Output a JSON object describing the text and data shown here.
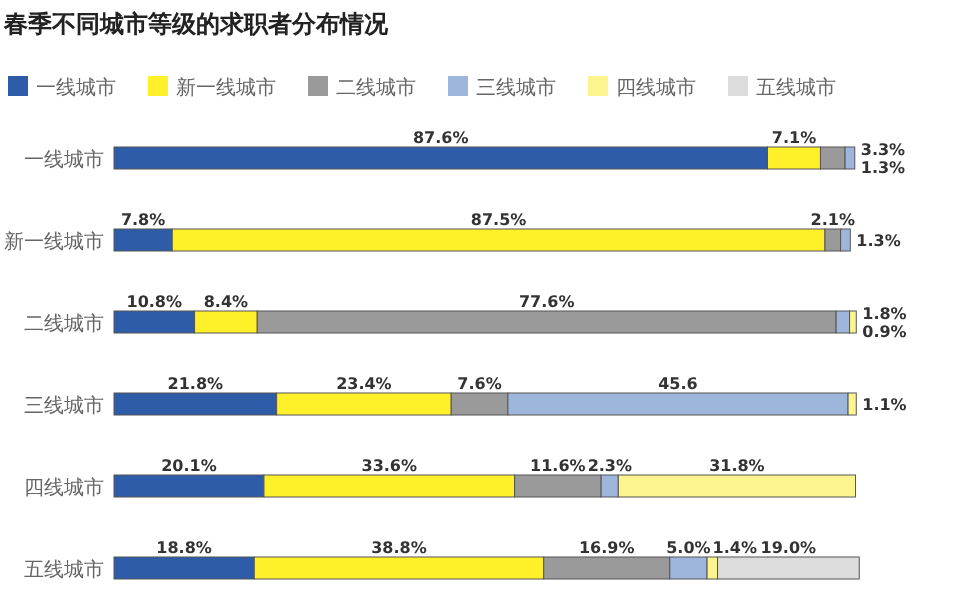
{
  "chart_data": {
    "type": "bar",
    "orientation": "horizontal",
    "stacked": true,
    "title": "春季不同城市等级的求职者分布情况",
    "legend": "top",
    "xlim": [
      0,
      100
    ],
    "categories": [
      "一线城市",
      "新一线城市",
      "二线城市",
      "三线城市",
      "四线城市",
      "五线城市"
    ],
    "series": [
      {
        "name": "一线城市",
        "color": "#2e5ca8",
        "values": [
          87.6,
          7.8,
          10.8,
          21.8,
          20.1,
          18.8
        ],
        "value_labels": [
          "87.6%",
          "7.8%",
          "10.8%",
          "21.8%",
          "20.1%",
          "18.8%"
        ]
      },
      {
        "name": "新一线城市",
        "color": "#fff02a",
        "values": [
          7.1,
          87.5,
          8.4,
          23.4,
          33.6,
          38.8
        ],
        "value_labels": [
          "7.1%",
          "87.5%",
          "8.4%",
          "23.4%",
          "33.6%",
          "38.8%"
        ]
      },
      {
        "name": "二线城市",
        "color": "#9a9a9a",
        "values": [
          3.3,
          2.1,
          77.6,
          7.6,
          11.6,
          16.9
        ],
        "value_labels": [
          "3.3%",
          "2.1%",
          "77.6%",
          "7.6%",
          "11.6%",
          "16.9%"
        ]
      },
      {
        "name": "三线城市",
        "color": "#9fb6dc",
        "values": [
          1.3,
          1.3,
          1.8,
          45.6,
          2.3,
          5.0
        ],
        "value_labels": [
          "1.3%",
          "1.3%",
          "1.8%",
          "45.6",
          "2.3%",
          "5.0%"
        ]
      },
      {
        "name": "四线城市",
        "color": "#fdf48f",
        "values": [
          null,
          null,
          0.9,
          1.1,
          31.8,
          1.4
        ],
        "value_labels": [
          null,
          null,
          "0.9%",
          "1.1%",
          "31.8%",
          "1.4%"
        ]
      },
      {
        "name": "五线城市",
        "color": "#dcdcdc",
        "values": [
          null,
          null,
          null,
          null,
          null,
          19.0
        ],
        "value_labels": [
          null,
          null,
          null,
          null,
          null,
          "19.0%"
        ]
      }
    ]
  }
}
